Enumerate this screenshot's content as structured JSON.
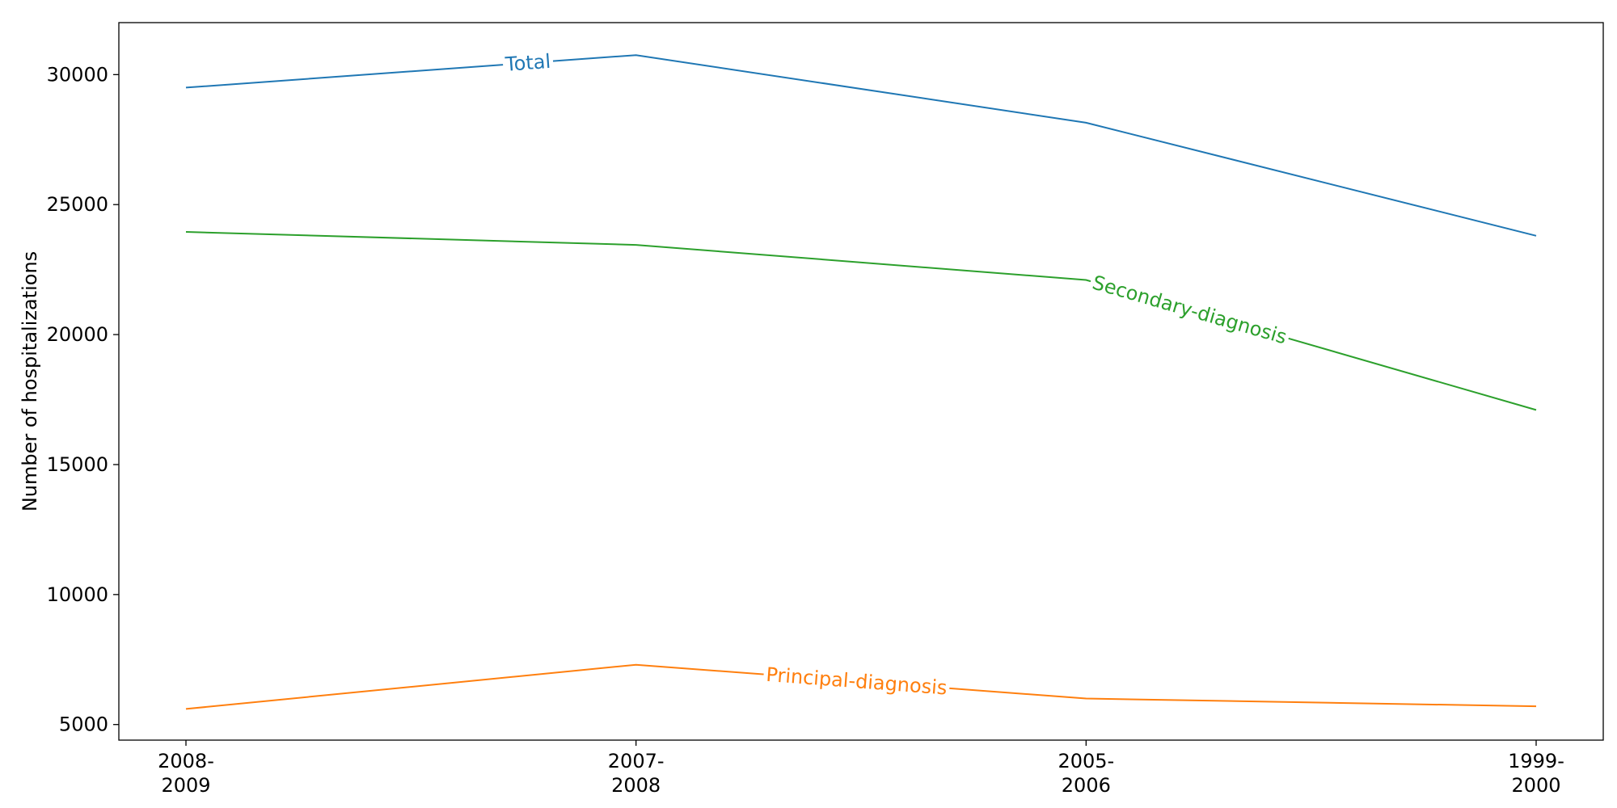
{
  "chart_data": {
    "type": "line",
    "title": "",
    "xlabel": "",
    "ylabel": "Number of hospitalizations",
    "categories": [
      "2008-\n2009",
      "2007-\n2008",
      "2005-\n2006",
      "1999-\n2000"
    ],
    "ylim": [
      4400,
      32000
    ],
    "yticks": [
      5000,
      10000,
      15000,
      20000,
      25000,
      30000
    ],
    "grid": false,
    "legend": "inline labels on lines",
    "series": [
      {
        "name": "Total",
        "color": "#1f77b4",
        "values": [
          29500,
          30750,
          28150,
          23800
        ],
        "label_pos": 0.76
      },
      {
        "name": "Secondary-diagnosis",
        "color": "#2ca02c",
        "values": [
          23950,
          23450,
          22100,
          17100
        ],
        "label_pos": 2.23
      },
      {
        "name": "Principal-diagnosis",
        "color": "#ff7f0e",
        "values": [
          5600,
          7300,
          6000,
          5700
        ],
        "label_pos": 1.49
      }
    ]
  }
}
